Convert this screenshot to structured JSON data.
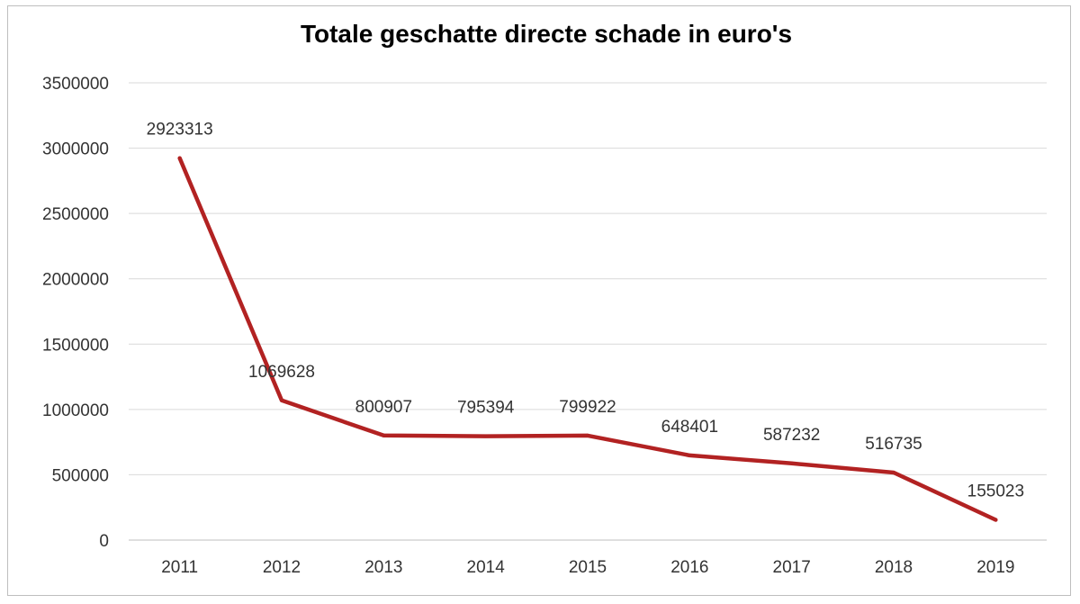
{
  "chart_data": {
    "type": "line",
    "title": "Totale geschatte directe schade in euro's",
    "xlabel": "",
    "ylabel": "",
    "categories": [
      "2011",
      "2012",
      "2013",
      "2014",
      "2015",
      "2016",
      "2017",
      "2018",
      "2019"
    ],
    "series": [
      {
        "name": "Totale geschatte directe schade",
        "values": [
          2923313,
          1069628,
          800907,
          795394,
          799922,
          648401,
          587232,
          516735,
          155023
        ],
        "color": "#b22222"
      }
    ],
    "ylim": [
      0,
      3500000
    ],
    "yticks": [
      0,
      500000,
      1000000,
      1500000,
      2000000,
      2500000,
      3000000,
      3500000
    ],
    "ytick_labels": [
      "0",
      "500000",
      "1000000",
      "1500000",
      "2000000",
      "2500000",
      "3000000",
      "3500000"
    ],
    "data_labels": [
      "2923313",
      "1069628",
      "800907",
      "795394",
      "799922",
      "648401",
      "587232",
      "516735",
      "155023"
    ],
    "grid": true,
    "legend": "none"
  }
}
